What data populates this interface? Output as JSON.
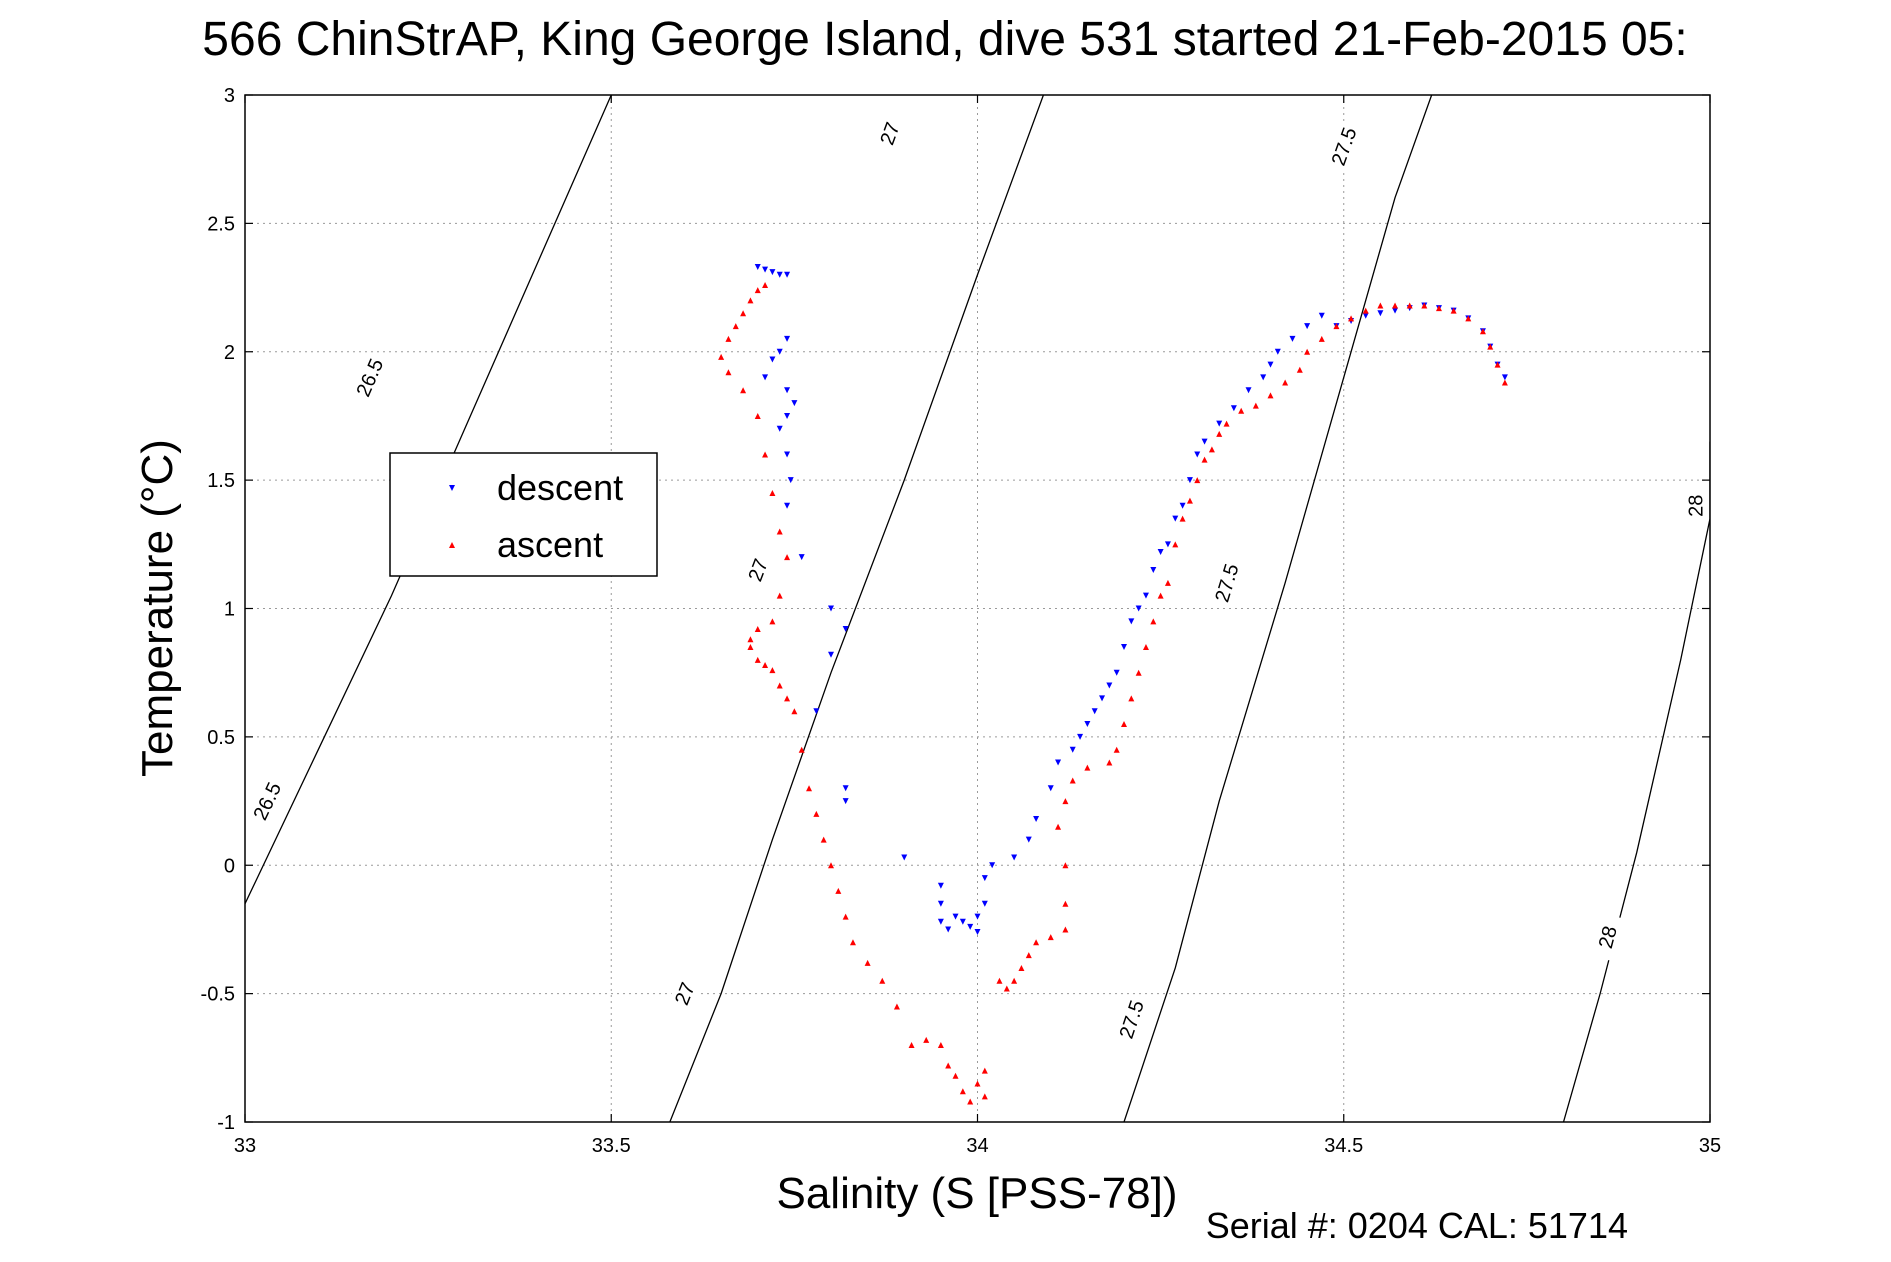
{
  "title": "566 ChinStrAP, King George Island, dive 531 started 21-Feb-2015 05:",
  "footer": "Serial #: 0204  CAL: 51714",
  "chart_data": {
    "type": "scatter",
    "xlabel": "Salinity (S [PSS-78])",
    "ylabel": "Temperature (°C)",
    "xlim": [
      33,
      35
    ],
    "ylim": [
      -1,
      3
    ],
    "grid": true,
    "legend_position": "left",
    "x_ticks": [
      "33",
      "33.5",
      "34",
      "34.5",
      "35"
    ],
    "y_ticks": [
      "-1",
      "-0.5",
      "0",
      "0.5",
      "1",
      "1.5",
      "2",
      "2.5",
      "3"
    ],
    "contours": [
      {
        "label": "26.5",
        "points": [
          [
            33.0,
            -0.15
          ],
          [
            33.1,
            0.45
          ],
          [
            33.2,
            1.05
          ],
          [
            33.3,
            1.7
          ],
          [
            33.4,
            2.35
          ],
          [
            33.5,
            3.0
          ]
        ],
        "labels_at": [
          [
            33.03,
            0.25
          ],
          [
            33.17,
            1.9
          ]
        ]
      },
      {
        "label": "27",
        "points": [
          [
            33.58,
            -1.0
          ],
          [
            33.65,
            -0.5
          ],
          [
            33.72,
            0.1
          ],
          [
            33.8,
            0.75
          ],
          [
            33.9,
            1.5
          ],
          [
            34.0,
            2.3
          ],
          [
            34.09,
            3.0
          ]
        ],
        "labels_at": [
          [
            33.6,
            -0.5
          ],
          [
            33.7,
            1.15
          ],
          [
            33.88,
            2.85
          ]
        ]
      },
      {
        "label": "27.5",
        "points": [
          [
            34.2,
            -1.0
          ],
          [
            34.27,
            -0.4
          ],
          [
            34.33,
            0.25
          ],
          [
            34.42,
            1.1
          ],
          [
            34.5,
            1.9
          ],
          [
            34.57,
            2.6
          ],
          [
            34.62,
            3.0
          ]
        ],
        "labels_at": [
          [
            34.21,
            -0.6
          ],
          [
            34.34,
            1.1
          ],
          [
            34.5,
            2.8
          ]
        ]
      },
      {
        "label": "28",
        "points": [
          [
            34.8,
            -1.0
          ],
          [
            34.85,
            -0.5
          ],
          [
            34.9,
            0.05
          ],
          [
            34.96,
            0.8
          ],
          [
            35.0,
            1.35
          ],
          [
            35.0,
            1.65
          ]
        ],
        "labels_at": [
          [
            34.86,
            -0.28
          ],
          [
            34.98,
            1.4
          ]
        ]
      }
    ],
    "series": [
      {
        "name": "descent",
        "color": "#0000ff",
        "marker": "triangle-down",
        "points": [
          [
            33.7,
            2.33
          ],
          [
            33.71,
            2.32
          ],
          [
            33.72,
            2.31
          ],
          [
            33.73,
            2.3
          ],
          [
            33.74,
            2.3
          ],
          [
            33.74,
            2.05
          ],
          [
            33.73,
            2.0
          ],
          [
            33.72,
            1.97
          ],
          [
            33.71,
            1.9
          ],
          [
            33.74,
            1.85
          ],
          [
            33.75,
            1.8
          ],
          [
            33.74,
            1.75
          ],
          [
            33.73,
            1.7
          ],
          [
            33.74,
            1.6
          ],
          [
            33.745,
            1.5
          ],
          [
            33.74,
            1.4
          ],
          [
            33.76,
            1.2
          ],
          [
            33.8,
            1.0
          ],
          [
            33.82,
            0.92
          ],
          [
            33.8,
            0.82
          ],
          [
            33.78,
            0.6
          ],
          [
            33.82,
            0.3
          ],
          [
            33.82,
            0.25
          ],
          [
            33.9,
            0.03
          ],
          [
            33.95,
            -0.08
          ],
          [
            33.95,
            -0.15
          ],
          [
            33.95,
            -0.22
          ],
          [
            33.96,
            -0.25
          ],
          [
            33.97,
            -0.2
          ],
          [
            33.98,
            -0.22
          ],
          [
            33.99,
            -0.24
          ],
          [
            34.0,
            -0.26
          ],
          [
            34.0,
            -0.2
          ],
          [
            34.01,
            -0.15
          ],
          [
            34.01,
            -0.05
          ],
          [
            34.02,
            0.0
          ],
          [
            34.05,
            0.03
          ],
          [
            34.07,
            0.1
          ],
          [
            34.08,
            0.18
          ],
          [
            34.1,
            0.3
          ],
          [
            34.11,
            0.4
          ],
          [
            34.13,
            0.45
          ],
          [
            34.14,
            0.5
          ],
          [
            34.15,
            0.55
          ],
          [
            34.16,
            0.6
          ],
          [
            34.17,
            0.65
          ],
          [
            34.18,
            0.7
          ],
          [
            34.19,
            0.75
          ],
          [
            34.2,
            0.85
          ],
          [
            34.21,
            0.95
          ],
          [
            34.22,
            1.0
          ],
          [
            34.23,
            1.05
          ],
          [
            34.24,
            1.15
          ],
          [
            34.25,
            1.22
          ],
          [
            34.26,
            1.25
          ],
          [
            34.27,
            1.35
          ],
          [
            34.28,
            1.4
          ],
          [
            34.29,
            1.5
          ],
          [
            34.3,
            1.6
          ],
          [
            34.31,
            1.65
          ],
          [
            34.33,
            1.72
          ],
          [
            34.35,
            1.78
          ],
          [
            34.37,
            1.85
          ],
          [
            34.39,
            1.9
          ],
          [
            34.4,
            1.95
          ],
          [
            34.41,
            2.0
          ],
          [
            34.43,
            2.05
          ],
          [
            34.45,
            2.1
          ],
          [
            34.47,
            2.14
          ],
          [
            34.49,
            2.1
          ],
          [
            34.51,
            2.12
          ],
          [
            34.53,
            2.14
          ],
          [
            34.55,
            2.15
          ],
          [
            34.57,
            2.16
          ],
          [
            34.59,
            2.17
          ],
          [
            34.61,
            2.18
          ],
          [
            34.63,
            2.17
          ],
          [
            34.65,
            2.16
          ],
          [
            34.67,
            2.13
          ],
          [
            34.69,
            2.08
          ],
          [
            34.7,
            2.02
          ],
          [
            34.71,
            1.95
          ],
          [
            34.72,
            1.9
          ]
        ]
      },
      {
        "name": "ascent",
        "color": "#ff0000",
        "marker": "triangle-up",
        "points": [
          [
            34.72,
            1.88
          ],
          [
            34.71,
            1.95
          ],
          [
            34.7,
            2.02
          ],
          [
            34.69,
            2.08
          ],
          [
            34.67,
            2.13
          ],
          [
            34.65,
            2.16
          ],
          [
            34.63,
            2.17
          ],
          [
            34.61,
            2.18
          ],
          [
            34.59,
            2.18
          ],
          [
            34.57,
            2.18
          ],
          [
            34.55,
            2.18
          ],
          [
            34.53,
            2.16
          ],
          [
            34.51,
            2.13
          ],
          [
            34.49,
            2.1
          ],
          [
            34.47,
            2.05
          ],
          [
            34.45,
            2.0
          ],
          [
            34.44,
            1.93
          ],
          [
            34.42,
            1.88
          ],
          [
            34.4,
            1.83
          ],
          [
            34.38,
            1.79
          ],
          [
            34.36,
            1.77
          ],
          [
            34.34,
            1.72
          ],
          [
            34.33,
            1.68
          ],
          [
            34.32,
            1.62
          ],
          [
            34.31,
            1.58
          ],
          [
            34.3,
            1.5
          ],
          [
            34.29,
            1.42
          ],
          [
            34.28,
            1.35
          ],
          [
            34.27,
            1.25
          ],
          [
            34.26,
            1.1
          ],
          [
            34.25,
            1.05
          ],
          [
            34.24,
            0.95
          ],
          [
            34.23,
            0.85
          ],
          [
            34.22,
            0.75
          ],
          [
            34.21,
            0.65
          ],
          [
            34.2,
            0.55
          ],
          [
            34.19,
            0.45
          ],
          [
            34.18,
            0.4
          ],
          [
            34.15,
            0.38
          ],
          [
            34.13,
            0.33
          ],
          [
            34.12,
            0.25
          ],
          [
            34.11,
            0.15
          ],
          [
            34.12,
            0.0
          ],
          [
            34.12,
            -0.15
          ],
          [
            34.12,
            -0.25
          ],
          [
            34.1,
            -0.28
          ],
          [
            34.08,
            -0.3
          ],
          [
            34.07,
            -0.35
          ],
          [
            34.06,
            -0.4
          ],
          [
            34.05,
            -0.45
          ],
          [
            34.04,
            -0.48
          ],
          [
            34.03,
            -0.45
          ],
          [
            34.01,
            -0.8
          ],
          [
            34.0,
            -0.85
          ],
          [
            34.01,
            -0.9
          ],
          [
            33.99,
            -0.92
          ],
          [
            33.98,
            -0.88
          ],
          [
            33.97,
            -0.82
          ],
          [
            33.96,
            -0.78
          ],
          [
            33.95,
            -0.7
          ],
          [
            33.93,
            -0.68
          ],
          [
            33.91,
            -0.7
          ],
          [
            33.89,
            -0.55
          ],
          [
            33.87,
            -0.45
          ],
          [
            33.85,
            -0.38
          ],
          [
            33.83,
            -0.3
          ],
          [
            33.82,
            -0.2
          ],
          [
            33.81,
            -0.1
          ],
          [
            33.8,
            0.0
          ],
          [
            33.79,
            0.1
          ],
          [
            33.78,
            0.2
          ],
          [
            33.77,
            0.3
          ],
          [
            33.76,
            0.45
          ],
          [
            33.75,
            0.6
          ],
          [
            33.74,
            0.65
          ],
          [
            33.73,
            0.7
          ],
          [
            33.72,
            0.76
          ],
          [
            33.71,
            0.78
          ],
          [
            33.7,
            0.8
          ],
          [
            33.69,
            0.85
          ],
          [
            33.69,
            0.88
          ],
          [
            33.7,
            0.92
          ],
          [
            33.72,
            0.95
          ],
          [
            33.73,
            1.05
          ],
          [
            33.74,
            1.2
          ],
          [
            33.73,
            1.3
          ],
          [
            33.72,
            1.45
          ],
          [
            33.71,
            1.6
          ],
          [
            33.7,
            1.75
          ],
          [
            33.68,
            1.85
          ],
          [
            33.66,
            1.92
          ],
          [
            33.65,
            1.98
          ],
          [
            33.66,
            2.05
          ],
          [
            33.67,
            2.1
          ],
          [
            33.68,
            2.15
          ],
          [
            33.69,
            2.2
          ],
          [
            33.7,
            2.24
          ],
          [
            33.71,
            2.26
          ]
        ]
      }
    ]
  }
}
